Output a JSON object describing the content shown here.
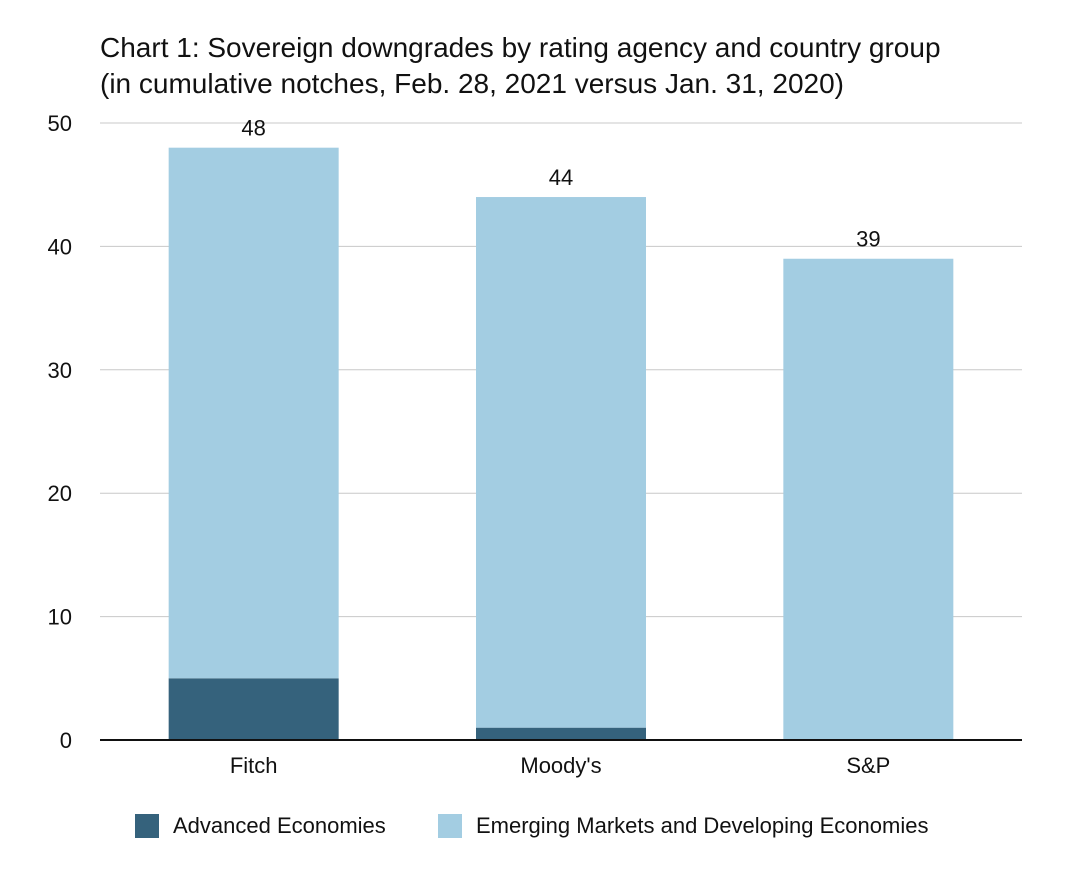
{
  "chart_data": {
    "type": "bar",
    "stacked": true,
    "title_lines": [
      "Chart 1: Sovereign downgrades by rating agency and country group",
      "(in cumulative notches, Feb. 28, 2021 versus Jan. 31, 2020)"
    ],
    "categories": [
      "Fitch",
      "Moody's",
      "S&P"
    ],
    "series": [
      {
        "name": "Advanced Economies",
        "color": "#35627c",
        "values": [
          5,
          1,
          0
        ]
      },
      {
        "name": "Emerging Markets and Developing Economies",
        "color": "#a3cde2",
        "values": [
          43,
          43,
          39
        ]
      }
    ],
    "totals": [
      48,
      44,
      39
    ],
    "total_labels": [
      "48",
      "44",
      "39"
    ],
    "yticks": [
      "0",
      "10",
      "20",
      "30",
      "40",
      "50"
    ],
    "ylim": [
      0,
      50
    ],
    "grid": true,
    "legend_position": "bottom"
  }
}
